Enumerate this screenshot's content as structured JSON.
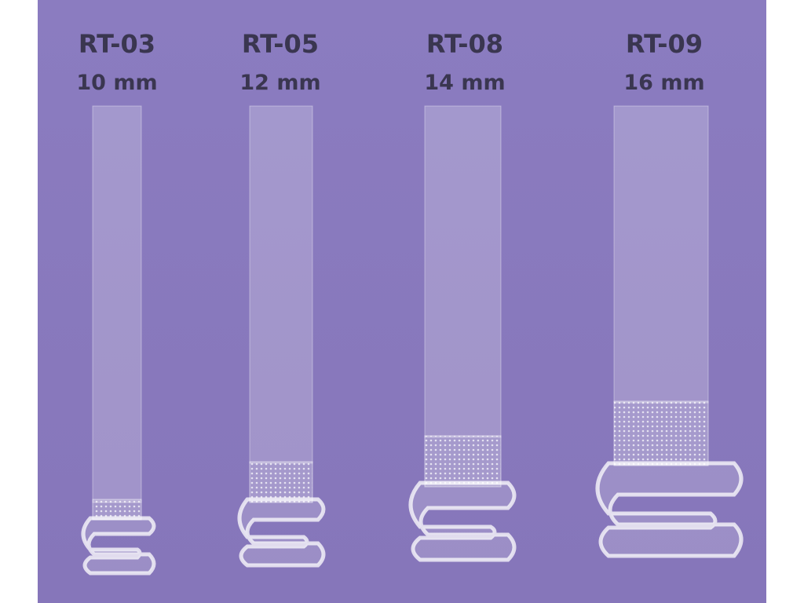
{
  "products": [
    {
      "code": "RT-03",
      "width": "10 mm"
    },
    {
      "code": "RT-05",
      "width": "12 mm"
    },
    {
      "code": "RT-08",
      "width": "14 mm"
    },
    {
      "code": "RT-09",
      "width": "16 mm"
    }
  ]
}
